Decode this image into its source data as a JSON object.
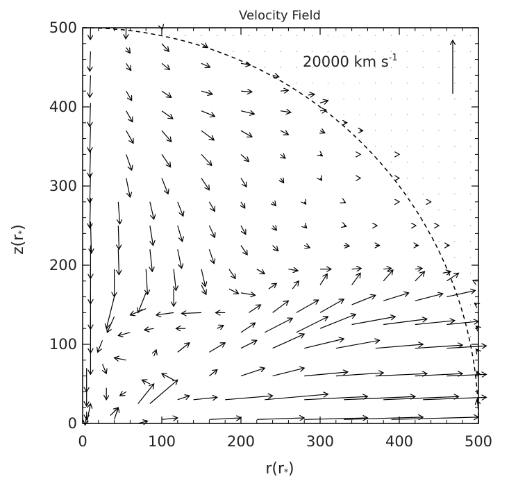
{
  "chart_data": {
    "type": "vector-field",
    "title": "Velocity Field",
    "xlabel": "r(r",
    "ylabel": "z(r",
    "axis_subscript": "*",
    "axis_close": ")",
    "xlim": [
      0,
      500
    ],
    "ylim": [
      0,
      500
    ],
    "x_ticks": [
      0,
      100,
      200,
      300,
      400,
      500
    ],
    "y_ticks": [
      0,
      100,
      200,
      300,
      400,
      500
    ],
    "reference_vector": {
      "label": "20000 km s",
      "label_exponent": "-1",
      "magnitude_kms": 20000
    },
    "boundary_radius": 500,
    "boundary_style": "dashed",
    "arrows": [
      [
        10,
        500,
        -0.3,
        -15
      ],
      [
        55,
        500,
        -0.5,
        -14
      ],
      [
        100,
        500,
        0.5,
        -2
      ],
      [
        10,
        470,
        -1,
        -25
      ],
      [
        55,
        475,
        5,
        -7
      ],
      [
        100,
        480,
        9,
        -10
      ],
      [
        150,
        480,
        8,
        -5
      ],
      [
        10,
        440,
        -1,
        -28
      ],
      [
        55,
        455,
        6,
        -9
      ],
      [
        100,
        455,
        10,
        -8
      ],
      [
        150,
        455,
        11,
        -5
      ],
      [
        200,
        455,
        12,
        -2
      ],
      [
        240,
        440,
        8,
        -2
      ],
      [
        10,
        405,
        -1,
        -30
      ],
      [
        55,
        420,
        7,
        -12
      ],
      [
        100,
        420,
        12,
        -8
      ],
      [
        150,
        420,
        14,
        -4
      ],
      [
        200,
        420,
        14,
        -1
      ],
      [
        250,
        420,
        10,
        1
      ],
      [
        285,
        415,
        8,
        1
      ],
      [
        300,
        405,
        10,
        3
      ],
      [
        10,
        375,
        -1,
        -32
      ],
      [
        55,
        395,
        8,
        -14
      ],
      [
        100,
        395,
        14,
        -10
      ],
      [
        150,
        395,
        17,
        -7
      ],
      [
        200,
        395,
        17,
        -4
      ],
      [
        250,
        395,
        13,
        -2
      ],
      [
        300,
        395,
        8,
        1
      ],
      [
        330,
        380,
        4,
        0
      ],
      [
        10,
        345,
        -1,
        -34
      ],
      [
        55,
        370,
        9,
        -16
      ],
      [
        100,
        370,
        12,
        -14
      ],
      [
        150,
        370,
        16,
        -12
      ],
      [
        200,
        370,
        14,
        -8
      ],
      [
        250,
        370,
        10,
        -5
      ],
      [
        300,
        370,
        6,
        -3
      ],
      [
        350,
        370,
        4,
        0
      ],
      [
        10,
        315,
        -1,
        -36
      ],
      [
        55,
        340,
        7,
        -20
      ],
      [
        100,
        340,
        11,
        -16
      ],
      [
        150,
        340,
        13,
        -14
      ],
      [
        200,
        340,
        10,
        -9
      ],
      [
        250,
        340,
        6,
        -5
      ],
      [
        300,
        340,
        3,
        -2
      ],
      [
        350,
        340,
        1,
        0
      ],
      [
        400,
        340,
        0,
        0
      ],
      [
        10,
        285,
        -1,
        -38
      ],
      [
        55,
        310,
        5,
        -24
      ],
      [
        100,
        310,
        8,
        -20
      ],
      [
        150,
        310,
        10,
        -15
      ],
      [
        200,
        310,
        7,
        -11
      ],
      [
        250,
        310,
        4,
        -6
      ],
      [
        300,
        310,
        2,
        -3
      ],
      [
        350,
        310,
        1,
        0
      ],
      [
        400,
        310,
        0,
        0
      ],
      [
        10,
        255,
        1,
        -40
      ],
      [
        45,
        280,
        2,
        -28
      ],
      [
        85,
        280,
        5,
        -22
      ],
      [
        120,
        280,
        7,
        -18
      ],
      [
        160,
        280,
        7,
        -12
      ],
      [
        200,
        280,
        5,
        -8
      ],
      [
        240,
        280,
        4,
        -5
      ],
      [
        280,
        280,
        2,
        -3
      ],
      [
        330,
        280,
        2,
        -1
      ],
      [
        400,
        280,
        0,
        0
      ],
      [
        440,
        280,
        0,
        0
      ],
      [
        10,
        225,
        0,
        -42
      ],
      [
        45,
        250,
        1,
        -30
      ],
      [
        85,
        250,
        4,
        -25
      ],
      [
        120,
        250,
        6,
        -20
      ],
      [
        160,
        250,
        7,
        -15
      ],
      [
        200,
        250,
        6,
        -11
      ],
      [
        240,
        250,
        5,
        -6
      ],
      [
        280,
        250,
        3,
        -3
      ],
      [
        330,
        250,
        3,
        -1
      ],
      [
        370,
        250,
        2,
        0
      ],
      [
        420,
        250,
        1,
        0
      ],
      [
        450,
        250,
        0,
        0
      ],
      [
        10,
        195,
        0,
        -44
      ],
      [
        45,
        220,
        1,
        -32
      ],
      [
        85,
        220,
        3,
        -28
      ],
      [
        120,
        220,
        5,
        -24
      ],
      [
        160,
        220,
        6,
        -18
      ],
      [
        200,
        225,
        8,
        -12
      ],
      [
        240,
        225,
        7,
        -7
      ],
      [
        280,
        225,
        7,
        -3
      ],
      [
        330,
        225,
        7,
        -1
      ],
      [
        370,
        225,
        5,
        0
      ],
      [
        420,
        225,
        4,
        0
      ],
      [
        460,
        225,
        3,
        0
      ],
      [
        10,
        165,
        0,
        -46
      ],
      [
        40,
        195,
        0,
        -35
      ],
      [
        80,
        195,
        2,
        -32
      ],
      [
        115,
        195,
        3,
        -27
      ],
      [
        150,
        195,
        5,
        -22
      ],
      [
        185,
        195,
        8,
        -12
      ],
      [
        220,
        195,
        10,
        -6
      ],
      [
        260,
        195,
        12,
        -2
      ],
      [
        300,
        195,
        14,
        0
      ],
      [
        340,
        195,
        12,
        1
      ],
      [
        380,
        195,
        10,
        1
      ],
      [
        420,
        195,
        9,
        1
      ],
      [
        455,
        190,
        10,
        2
      ],
      [
        10,
        135,
        0,
        -46
      ],
      [
        40,
        160,
        -10,
        -40
      ],
      [
        80,
        165,
        -10,
        -25
      ],
      [
        115,
        170,
        0,
        -22
      ],
      [
        150,
        175,
        6,
        -12
      ],
      [
        185,
        170,
        12,
        -6
      ],
      [
        200,
        165,
        18,
        -3
      ],
      [
        235,
        170,
        10,
        7
      ],
      [
        265,
        170,
        8,
        10
      ],
      [
        300,
        175,
        9,
        14
      ],
      [
        340,
        175,
        11,
        15
      ],
      [
        380,
        180,
        12,
        14
      ],
      [
        420,
        180,
        12,
        12
      ],
      [
        460,
        180,
        15,
        10
      ],
      [
        10,
        100,
        0,
        -38
      ],
      [
        40,
        135,
        -9,
        -20
      ],
      [
        80,
        145,
        -20,
        -8
      ],
      [
        115,
        140,
        -22,
        -3
      ],
      [
        150,
        140,
        -25,
        -1
      ],
      [
        180,
        140,
        -12,
        0
      ],
      [
        210,
        140,
        15,
        10
      ],
      [
        240,
        140,
        20,
        15
      ],
      [
        270,
        140,
        28,
        16
      ],
      [
        300,
        140,
        30,
        17
      ],
      [
        340,
        150,
        30,
        12
      ],
      [
        380,
        155,
        32,
        10
      ],
      [
        420,
        155,
        35,
        9
      ],
      [
        460,
        160,
        36,
        8
      ],
      [
        5,
        70,
        0,
        -30
      ],
      [
        25,
        105,
        -6,
        -15
      ],
      [
        60,
        115,
        -15,
        -4
      ],
      [
        90,
        120,
        -12,
        -2
      ],
      [
        130,
        120,
        -12,
        0
      ],
      [
        170,
        120,
        8,
        4
      ],
      [
        200,
        115,
        18,
        12
      ],
      [
        230,
        115,
        35,
        18
      ],
      [
        270,
        115,
        40,
        20
      ],
      [
        300,
        120,
        45,
        18
      ],
      [
        340,
        125,
        55,
        10
      ],
      [
        380,
        125,
        55,
        7
      ],
      [
        420,
        125,
        50,
        5
      ],
      [
        460,
        125,
        40,
        4
      ],
      [
        5,
        40,
        0,
        -18
      ],
      [
        25,
        75,
        5,
        -12
      ],
      [
        55,
        80,
        -15,
        3
      ],
      [
        90,
        85,
        3,
        8
      ],
      [
        120,
        90,
        15,
        12
      ],
      [
        160,
        90,
        20,
        12
      ],
      [
        200,
        95,
        20,
        10
      ],
      [
        240,
        95,
        40,
        18
      ],
      [
        280,
        95,
        50,
        12
      ],
      [
        320,
        95,
        55,
        10
      ],
      [
        370,
        95,
        60,
        5
      ],
      [
        420,
        95,
        60,
        4
      ],
      [
        460,
        95,
        50,
        3
      ],
      [
        5,
        15,
        0,
        -10
      ],
      [
        30,
        45,
        0,
        -15
      ],
      [
        55,
        40,
        -8,
        -5
      ],
      [
        85,
        50,
        -10,
        5
      ],
      [
        115,
        55,
        -15,
        8
      ],
      [
        160,
        60,
        10,
        8
      ],
      [
        200,
        60,
        30,
        10
      ],
      [
        240,
        60,
        40,
        10
      ],
      [
        280,
        60,
        55,
        5
      ],
      [
        320,
        60,
        60,
        4
      ],
      [
        370,
        60,
        65,
        3
      ],
      [
        420,
        60,
        60,
        3
      ],
      [
        460,
        60,
        50,
        2
      ],
      [
        5,
        0,
        5,
        25
      ],
      [
        35,
        10,
        10,
        10
      ],
      [
        70,
        25,
        20,
        25
      ],
      [
        85,
        25,
        35,
        30
      ],
      [
        120,
        30,
        15,
        5
      ],
      [
        140,
        30,
        30,
        3
      ],
      [
        180,
        30,
        60,
        5
      ],
      [
        230,
        30,
        80,
        7
      ],
      [
        280,
        30,
        80,
        4
      ],
      [
        330,
        30,
        90,
        4
      ],
      [
        380,
        30,
        95,
        4
      ],
      [
        430,
        30,
        80,
        3
      ],
      [
        5,
        10,
        -2,
        -12
      ],
      [
        40,
        5,
        5,
        15
      ],
      [
        70,
        0,
        12,
        3
      ],
      [
        100,
        5,
        20,
        2
      ],
      [
        160,
        5,
        40,
        2
      ],
      [
        220,
        5,
        60,
        2
      ],
      [
        280,
        5,
        80,
        2
      ],
      [
        330,
        5,
        100,
        3
      ],
      [
        390,
        5,
        110,
        3
      ],
      [
        500,
        20,
        -2,
        10
      ],
      [
        500,
        60,
        -2,
        6
      ],
      [
        500,
        90,
        -3,
        4
      ],
      [
        500,
        120,
        -3,
        3
      ],
      [
        498,
        150,
        -3,
        2
      ],
      [
        495,
        180,
        -2,
        1
      ]
    ]
  }
}
